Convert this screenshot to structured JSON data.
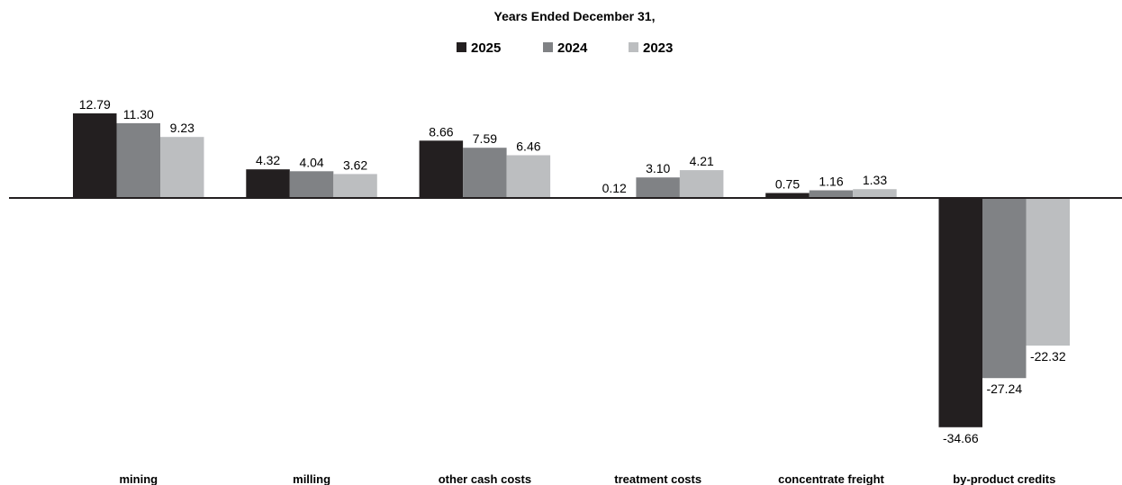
{
  "chart_data": {
    "type": "bar",
    "title": "Years Ended December 31,",
    "categories": [
      "mining",
      "milling",
      "other cash costs",
      "treatment costs",
      "concentrate freight",
      "by-product credits"
    ],
    "series": [
      {
        "name": "2025",
        "color": "#231f20",
        "values": [
          12.79,
          4.32,
          8.66,
          0.12,
          0.75,
          -34.66
        ],
        "labels": [
          "12.79",
          "4.32",
          "8.66",
          "0.12",
          "0.75",
          "-34.66"
        ]
      },
      {
        "name": "2024",
        "color": "#808285",
        "values": [
          11.3,
          4.04,
          7.59,
          3.1,
          1.16,
          -27.24
        ],
        "labels": [
          "11.30",
          "4.04",
          "7.59",
          "3.10",
          "1.16",
          "-27.24"
        ]
      },
      {
        "name": "2023",
        "color": "#bcbec0",
        "values": [
          9.23,
          3.62,
          6.46,
          4.21,
          1.33,
          -22.32
        ],
        "labels": [
          "9.23",
          "3.62",
          "6.46",
          "4.21",
          "1.33",
          "-22.32"
        ]
      }
    ],
    "legend": "top-center",
    "grid": false,
    "ylim": [
      -36,
      14
    ]
  }
}
